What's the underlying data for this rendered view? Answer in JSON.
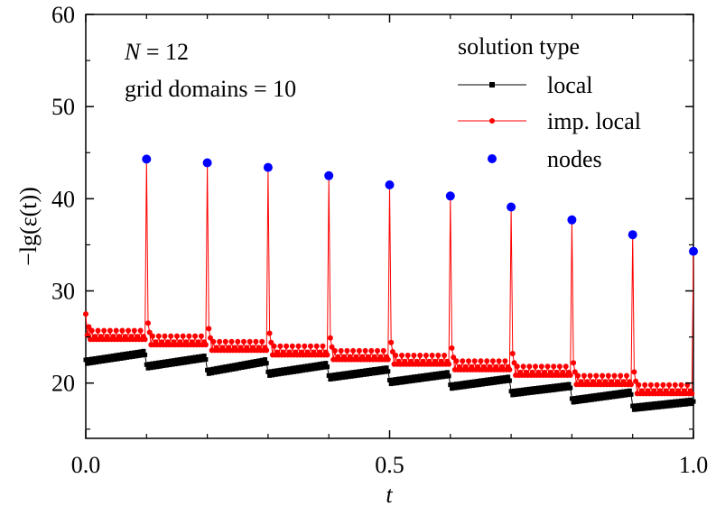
{
  "chart_data": {
    "type": "line",
    "title": "",
    "xlabel": "t",
    "ylabel": "−lg(ε(t))",
    "xlim": [
      0.0,
      1.0
    ],
    "ylim": [
      14,
      60
    ],
    "x_ticks": [
      0.0,
      0.5,
      1.0
    ],
    "x_tick_labels": [
      "0.0",
      "0.5",
      "1.0"
    ],
    "y_ticks": [
      20,
      30,
      40,
      50,
      60
    ],
    "y_tick_labels": [
      "20",
      "30",
      "40",
      "50",
      "60"
    ],
    "grid": false,
    "annotations": {
      "N_var": "N",
      "N_rest": " = 12",
      "domains": "grid domains = 10"
    },
    "legend": {
      "title": "solution type",
      "placement": "top-right",
      "entries": [
        "local",
        "imp. local",
        "nodes"
      ]
    },
    "colors": {
      "local": "#000000",
      "imp_local": "#ff0000",
      "nodes": "#0000ff"
    },
    "samples_per_domain": 40,
    "domain_levels": {
      "local_start": [
        22.3,
        21.8,
        21.2,
        21.0,
        20.6,
        20.1,
        19.6,
        18.9,
        18.1,
        17.3
      ],
      "local_end": [
        23.3,
        22.8,
        22.4,
        22.0,
        21.5,
        21.0,
        20.5,
        19.7,
        19.0,
        18.0
      ],
      "imp_local_level": [
        24.9,
        24.3,
        23.7,
        23.2,
        22.7,
        22.2,
        21.6,
        21.0,
        20.0,
        19.0
      ]
    },
    "series": [
      {
        "name": "nodes",
        "x": [
          0.1,
          0.2,
          0.3,
          0.4,
          0.5,
          0.6,
          0.7,
          0.8,
          0.9,
          1.0
        ],
        "y": [
          44.3,
          43.9,
          43.4,
          42.5,
          41.5,
          40.3,
          39.1,
          37.7,
          36.1,
          34.3
        ]
      }
    ]
  }
}
